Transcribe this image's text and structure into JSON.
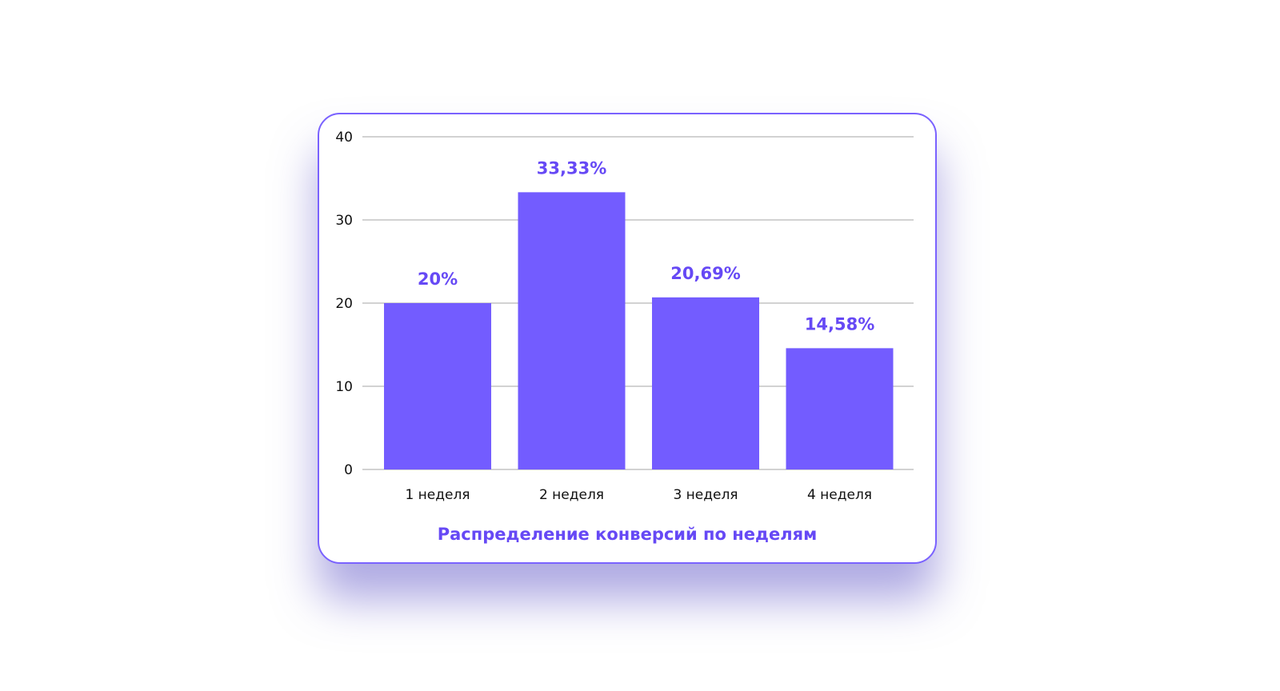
{
  "chart_data": {
    "type": "bar",
    "title": "Распределение конверсий по неделям",
    "categories": [
      "1 неделя",
      "2 неделя",
      "3 неделя",
      "4 неделя"
    ],
    "values": [
      20,
      33.33,
      20.69,
      14.58
    ],
    "data_labels": [
      "20%",
      "33,33%",
      "20,69%",
      "14,58%"
    ],
    "xlabel": "",
    "ylabel": "",
    "ylim": [
      0,
      40
    ],
    "yticks": [
      "0",
      "10",
      "20",
      "30",
      "40"
    ],
    "grid": true,
    "legend": "none",
    "colors": {
      "bar": "#735cff",
      "label": "#6649f5",
      "border": "#7a62ff"
    }
  }
}
